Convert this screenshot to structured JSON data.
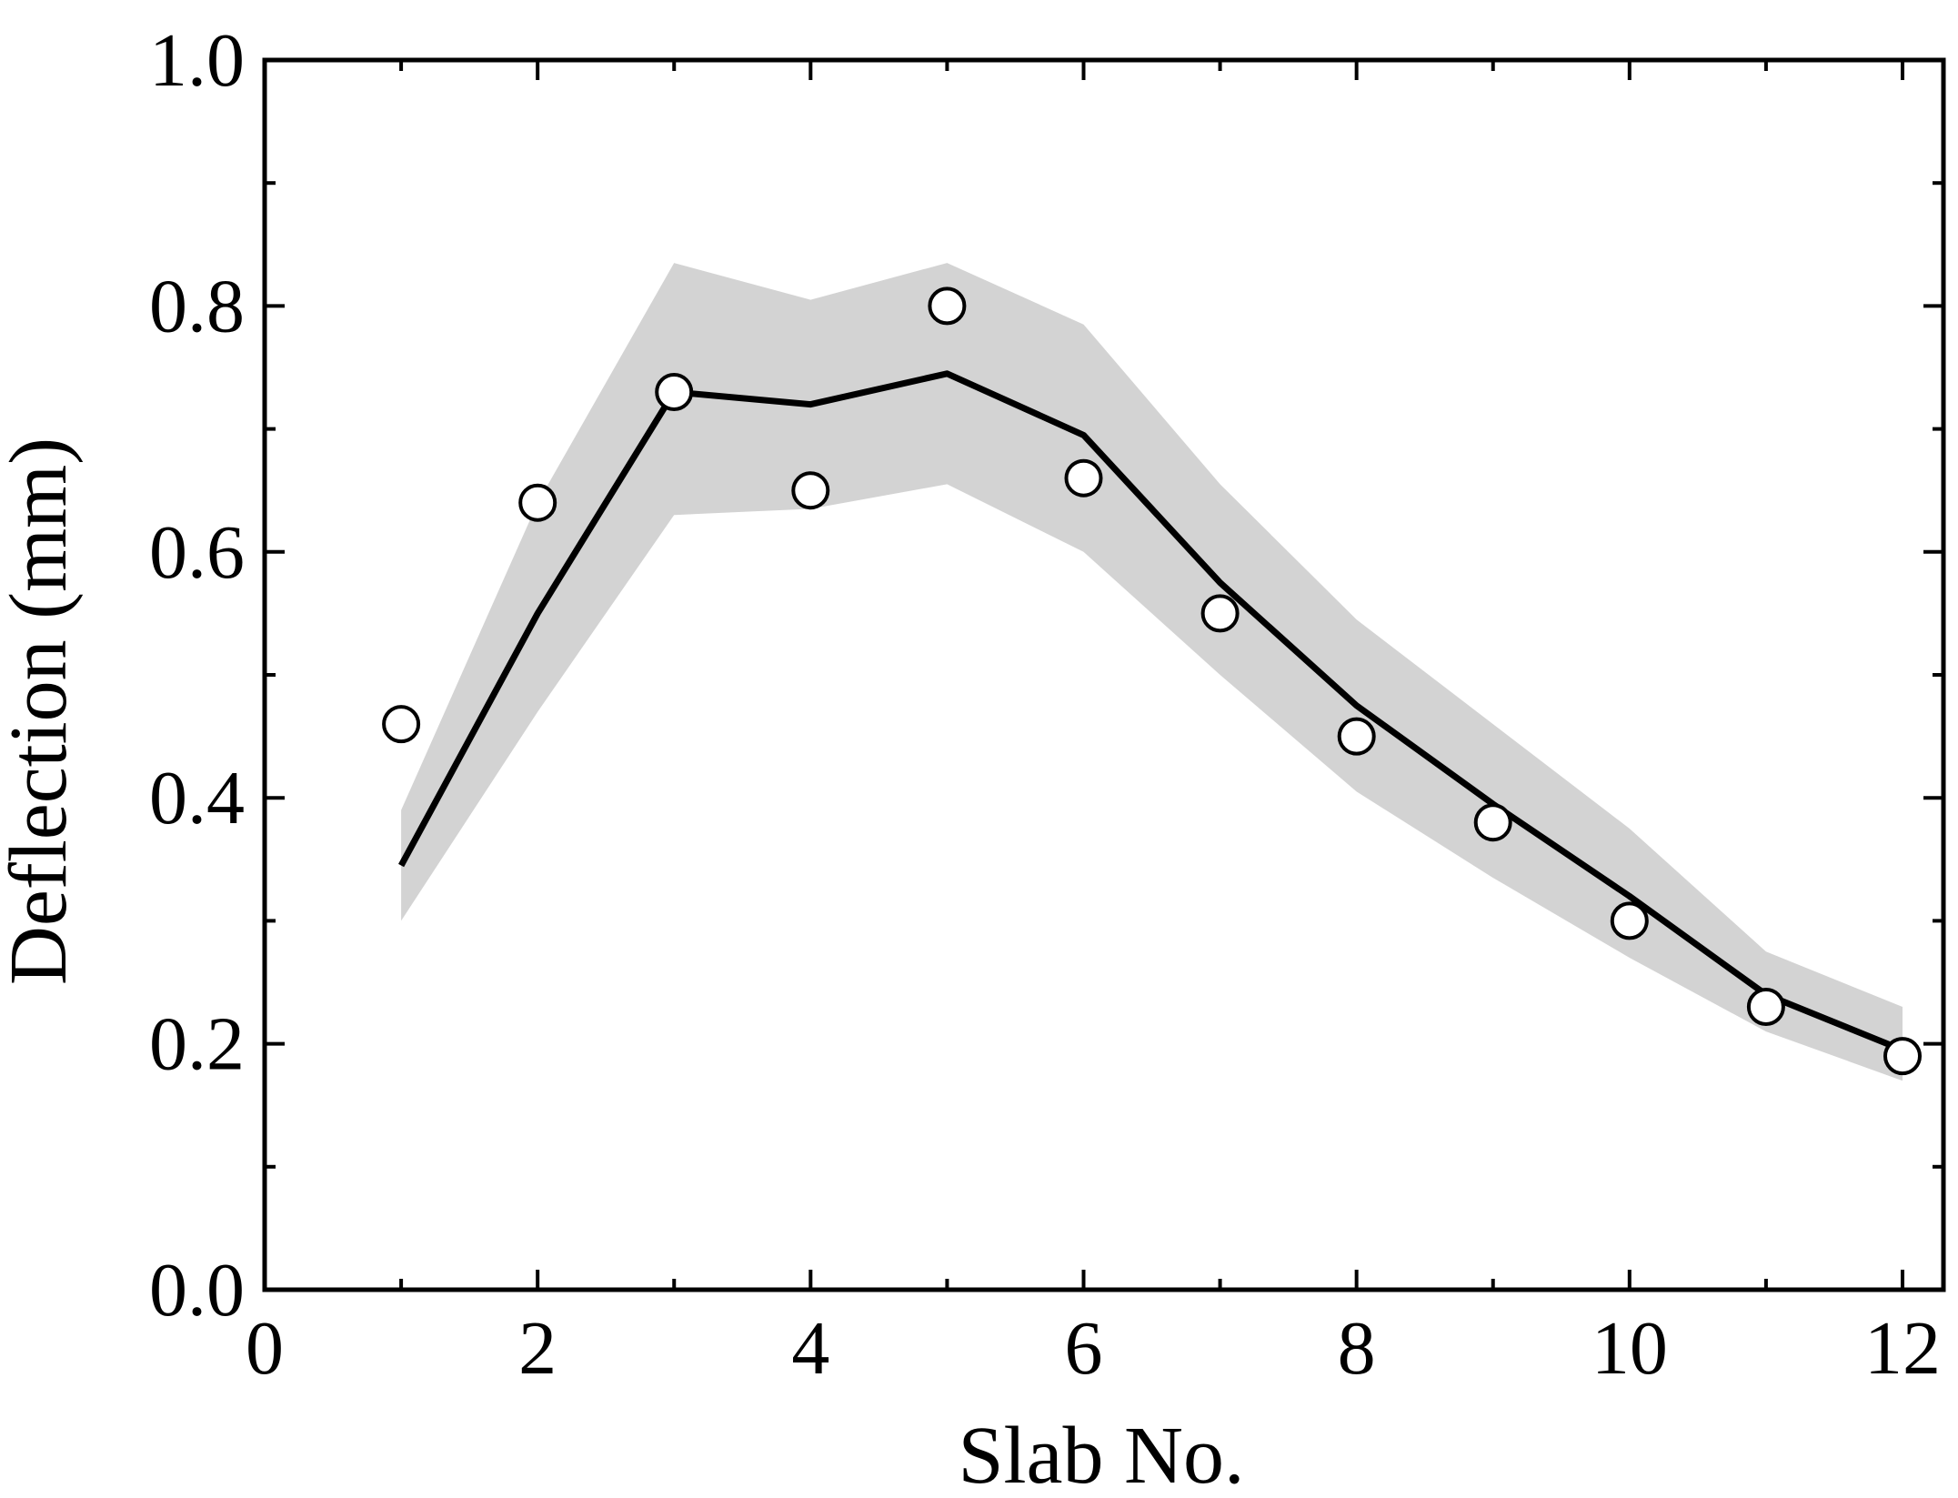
{
  "chart_data": {
    "type": "line",
    "title": "",
    "xlabel": "Slab No.",
    "ylabel": "Deflection (mm)",
    "xlim": [
      0,
      12.3
    ],
    "ylim": [
      0,
      1.0
    ],
    "x_ticks": [
      0,
      2,
      4,
      6,
      8,
      10,
      12
    ],
    "x_tick_labels": [
      "0",
      "2",
      "4",
      "6",
      "8",
      "10",
      "12"
    ],
    "y_ticks": [
      0.0,
      0.2,
      0.4,
      0.6,
      0.8,
      1.0
    ],
    "y_tick_labels": [
      "0.0",
      "0.2",
      "0.4",
      "0.6",
      "0.8",
      "1.0"
    ],
    "grid": false,
    "series": [
      {
        "kind": "band",
        "x": [
          1,
          2,
          3,
          4,
          5,
          6,
          7,
          8,
          9,
          10,
          11,
          12
        ],
        "upper": [
          0.39,
          0.64,
          0.835,
          0.805,
          0.835,
          0.785,
          0.655,
          0.545,
          0.46,
          0.375,
          0.275,
          0.23
        ],
        "lower": [
          0.3,
          0.47,
          0.63,
          0.635,
          0.655,
          0.6,
          0.5,
          0.405,
          0.335,
          0.27,
          0.21,
          0.17
        ],
        "color": "#d3d3d3"
      },
      {
        "kind": "line",
        "x": [
          1,
          2,
          3,
          4,
          5,
          6,
          7,
          8,
          9,
          10,
          11,
          12
        ],
        "values": [
          0.345,
          0.55,
          0.73,
          0.72,
          0.745,
          0.695,
          0.575,
          0.475,
          0.395,
          0.32,
          0.24,
          0.195
        ],
        "color": "#000000"
      },
      {
        "kind": "scatter",
        "marker": "open-circle",
        "x": [
          1,
          2,
          3,
          4,
          5,
          6,
          7,
          8,
          9,
          10,
          11,
          12
        ],
        "values": [
          0.46,
          0.64,
          0.73,
          0.65,
          0.8,
          0.66,
          0.55,
          0.45,
          0.38,
          0.3,
          0.23,
          0.19
        ],
        "color": "#000000"
      }
    ]
  }
}
